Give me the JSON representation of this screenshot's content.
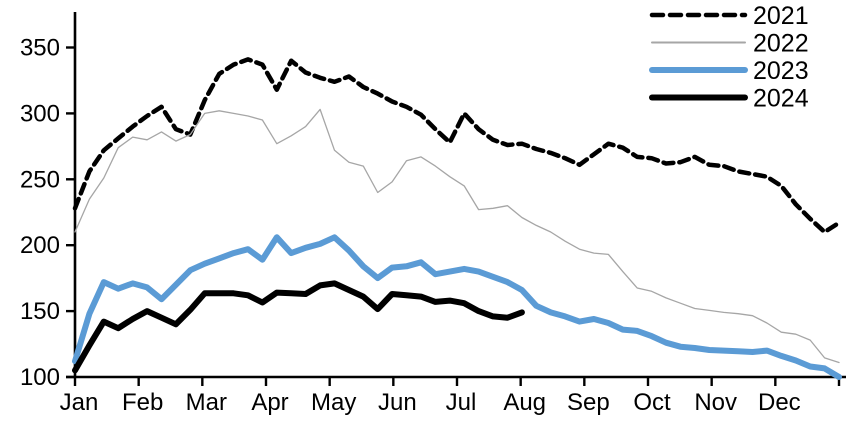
{
  "chart_data": {
    "type": "line",
    "title": "",
    "xlabel": "",
    "ylabel": "",
    "x_tick_labels": [
      "Jan",
      "Feb",
      "Mar",
      "Apr",
      "May",
      "Jun",
      "Jul",
      "Aug",
      "Sep",
      "Oct",
      "Nov",
      "Dec"
    ],
    "y_axis": {
      "min": 100,
      "max": 350,
      "ticks": [
        100,
        150,
        200,
        250,
        300,
        350
      ]
    },
    "grid": false,
    "legend_position": "top-right",
    "x_unit": "weekly points, Jan through Dec",
    "series": [
      {
        "name": "2021",
        "color": "#000000",
        "style": "dashed",
        "width": 4.5,
        "values": [
          228,
          256,
          272,
          281,
          290,
          298,
          305,
          288,
          284,
          310,
          330,
          337,
          341,
          337,
          318,
          340,
          331,
          327,
          324,
          328,
          320,
          315,
          309,
          305,
          299,
          288,
          278,
          300,
          288,
          280,
          276,
          277,
          273,
          270,
          266,
          261,
          269,
          277,
          274,
          267,
          266,
          262,
          263,
          267,
          261,
          260,
          256,
          254,
          252,
          245,
          231,
          220,
          210,
          217
        ]
      },
      {
        "name": "2022",
        "color": "#A6A6A6",
        "style": "solid",
        "width": 1.3,
        "values": [
          210,
          235,
          251,
          274,
          282,
          280,
          286,
          279,
          284,
          300,
          302,
          300,
          298,
          295,
          277,
          283,
          290,
          303,
          272,
          263,
          260,
          240,
          248,
          264,
          267,
          260,
          252,
          245,
          227,
          228,
          230,
          221,
          215,
          210,
          203,
          197,
          194,
          193,
          180,
          167.5,
          165,
          160,
          156,
          152,
          150.5,
          149,
          148,
          146.5,
          141,
          134,
          132.5,
          128,
          114.5,
          111
        ]
      },
      {
        "name": "2023",
        "color": "#5B9BD5",
        "style": "solid",
        "width": 6,
        "values": [
          112,
          148,
          172,
          167,
          171,
          168,
          159,
          170,
          181,
          186,
          190,
          194,
          197,
          189,
          206,
          194,
          198,
          201,
          206,
          196,
          184,
          175,
          183,
          184,
          187,
          178,
          180,
          182,
          180,
          176,
          172,
          166,
          154,
          149,
          146,
          142,
          144,
          141,
          136,
          135,
          131,
          126,
          123,
          122,
          120.5,
          120,
          119.5,
          119,
          120,
          116,
          112.5,
          108,
          106.5,
          100
        ]
      },
      {
        "name": "2024",
        "color": "#000000",
        "style": "solid",
        "width": 6,
        "values": [
          105,
          124,
          142,
          137,
          144,
          150,
          145,
          140,
          151,
          163.5,
          163.5,
          163.5,
          162,
          156.5,
          164,
          163.5,
          163,
          169.5,
          171,
          166,
          161,
          151.5,
          163,
          162,
          161,
          157,
          158,
          156,
          150,
          146,
          145,
          149
        ]
      }
    ]
  }
}
